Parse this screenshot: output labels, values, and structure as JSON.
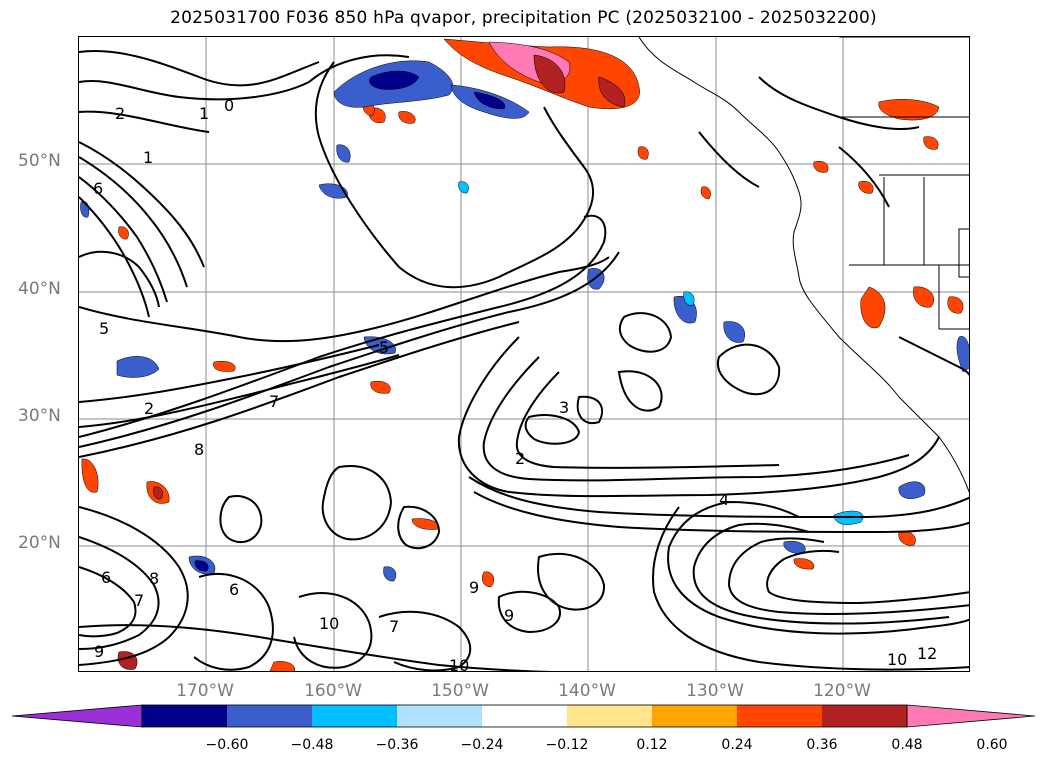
{
  "title": "2025031700 F036 850 hPa qvapor, precipitation PC (2025032100 - 2025032200)",
  "lat_labels": [
    "50°N",
    "40°N",
    "30°N",
    "20°N"
  ],
  "lon_labels": [
    "170°W",
    "160°W",
    "150°W",
    "140°W",
    "130°W",
    "120°W"
  ],
  "colorbar": {
    "colors": [
      "#9b30d9",
      "#00008b",
      "#3a5fcd",
      "#00bfff",
      "#b0e2ff",
      "#ffffff",
      "#ffe68c",
      "#ffa500",
      "#ff4500",
      "#b22222",
      "#ff7ab4"
    ],
    "ticks": [
      "−0.60",
      "−0.48",
      "−0.36",
      "−0.24",
      "−0.12",
      "0.12",
      "0.24",
      "0.36",
      "0.48",
      "0.60"
    ]
  },
  "contour_labels": [
    "0",
    "1",
    "1",
    "2",
    "2",
    "2",
    "3",
    "4",
    "5",
    "5",
    "6",
    "6",
    "6",
    "7",
    "7",
    "7",
    "8",
    "8",
    "9",
    "9",
    "9",
    "10",
    "10",
    "10",
    "12"
  ],
  "colors": {
    "contour": "#000000",
    "grid": "#8c8c8c",
    "coast": "#000000",
    "axis_label": "#7a7a7a"
  }
}
